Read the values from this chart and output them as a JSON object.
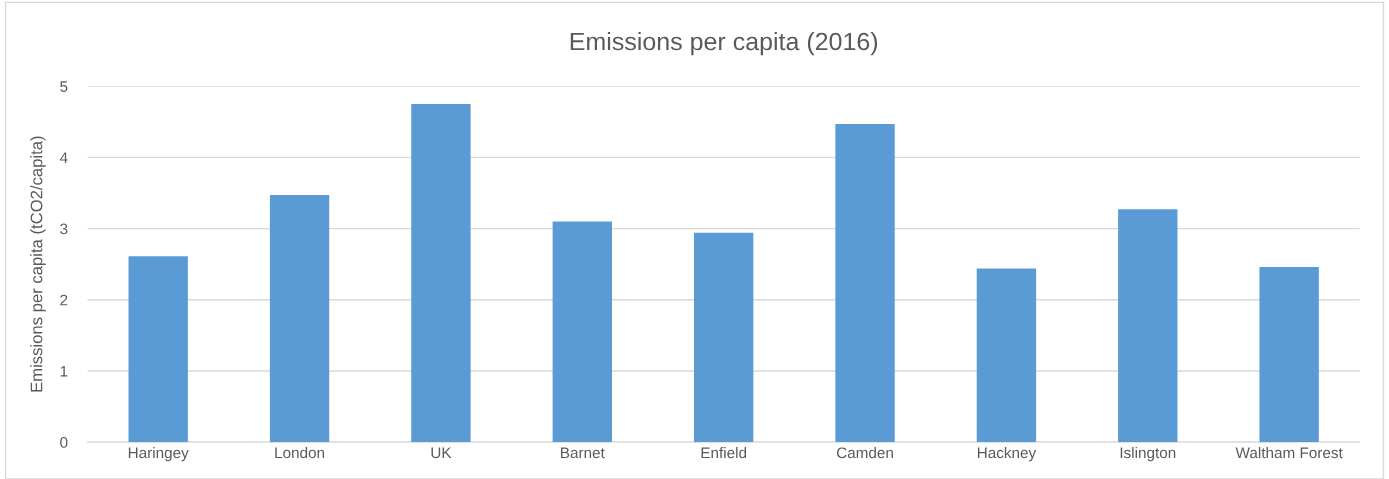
{
  "chart_data": {
    "type": "bar",
    "title": "Emissions per capita (2016)",
    "ylabel": "Emissions per capita (tCO2/capita)",
    "categories": [
      "Haringey",
      "London",
      "UK",
      "Barnet",
      "Enfield",
      "Camden",
      "Hackney",
      "Islington",
      "Waltham Forest"
    ],
    "values": [
      2.61,
      3.47,
      4.75,
      3.1,
      2.94,
      4.47,
      2.44,
      3.27,
      2.46
    ],
    "color": "#5b9bd5",
    "ylim": [
      0,
      5
    ],
    "yticks": [
      0,
      1,
      2,
      3,
      4,
      5
    ],
    "grid": "y"
  }
}
